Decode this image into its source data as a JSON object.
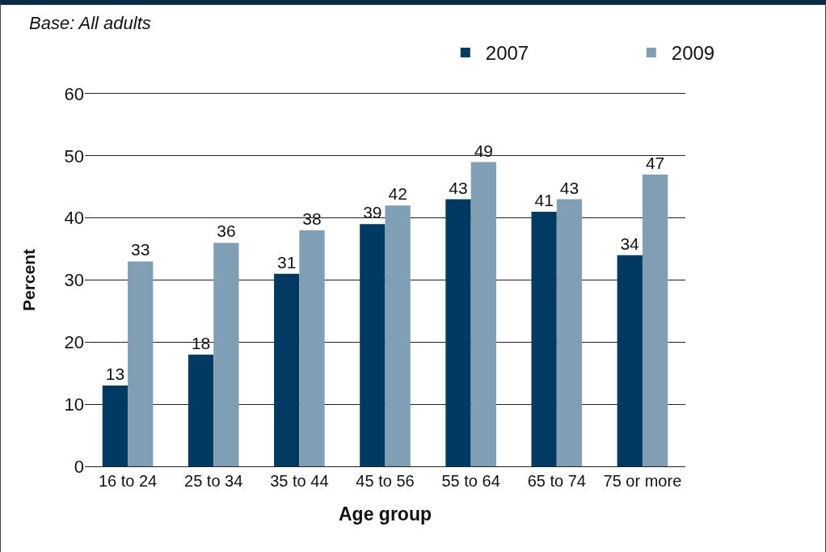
{
  "chart_data": {
    "type": "bar",
    "annotations": [
      "Base: All adults"
    ],
    "xlabel": "Age group",
    "ylabel": "Percent",
    "categories": [
      "16 to 24",
      "25 to 34",
      "35 to 44",
      "45 to 56",
      "55 to 64",
      "65 to 74",
      "75 or more"
    ],
    "series": [
      {
        "name": "2007",
        "color": "#003a63",
        "values": [
          13,
          18,
          31,
          39,
          43,
          41,
          34
        ]
      },
      {
        "name": "2009",
        "color": "#809fb4",
        "values": [
          33,
          36,
          38,
          42,
          49,
          43,
          47
        ]
      }
    ],
    "ylim": [
      0,
      60
    ],
    "yticks": [
      0,
      10,
      20,
      30,
      40,
      50,
      60
    ],
    "grid": "y",
    "legend": "top right",
    "data_labels": true
  }
}
